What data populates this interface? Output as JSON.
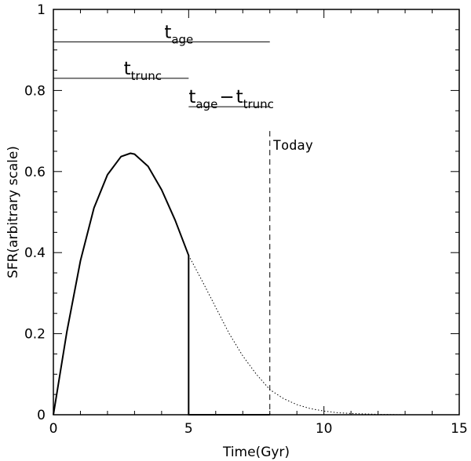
{
  "chart_data": {
    "type": "line",
    "title": "",
    "xlabel": "Time(Gyr)",
    "ylabel": "SFR(arbitrary scale)",
    "xlim": [
      0,
      15
    ],
    "ylim": [
      0,
      1
    ],
    "xticks": [
      0,
      5,
      10,
      15
    ],
    "yticks": [
      0,
      0.2,
      0.4,
      0.6,
      0.8,
      1
    ],
    "xtick_labels": [
      "0",
      "5",
      "10",
      "15"
    ],
    "ytick_labels": [
      "0",
      "0.2",
      "0.4",
      "0.6",
      "0.8",
      "1"
    ],
    "grid": false,
    "legend": "none",
    "series": [
      {
        "style": "solid",
        "x": [
          0,
          0.5,
          1,
          1.5,
          2,
          2.5,
          2.85,
          3,
          3.5,
          4,
          4.5,
          5,
          5,
          6,
          7,
          8
        ],
        "y": [
          0,
          0.205,
          0.38,
          0.51,
          0.592,
          0.637,
          0.645,
          0.643,
          0.613,
          0.555,
          0.48,
          0.393,
          0,
          0,
          0,
          0
        ]
      },
      {
        "style": "dotted",
        "x": [
          5,
          5.5,
          6,
          6.5,
          7,
          7.5,
          8,
          8.5,
          9,
          9.5,
          10,
          10.5,
          11,
          11.5,
          12,
          13,
          14,
          15
        ],
        "y": [
          0.393,
          0.33,
          0.265,
          0.2,
          0.145,
          0.1,
          0.062,
          0.04,
          0.025,
          0.015,
          0.009,
          0.005,
          0.003,
          0.002,
          0.001,
          0,
          0,
          0
        ]
      }
    ],
    "annotations": {
      "today": {
        "label": "Today",
        "x": 8,
        "y_top": 0.7
      },
      "t_age": {
        "main": "t",
        "sub": "age",
        "y": 0.92,
        "x0": 0,
        "x1": 8
      },
      "t_trunc": {
        "main": "t",
        "sub": "trunc",
        "y": 0.83,
        "x0": 0,
        "x1": 5
      },
      "t_diff": {
        "main1": "t",
        "sub1": "age",
        "operator": "−",
        "main2": "t",
        "sub2": "trunc",
        "y": 0.76,
        "x0": 5,
        "x1": 8
      }
    }
  }
}
